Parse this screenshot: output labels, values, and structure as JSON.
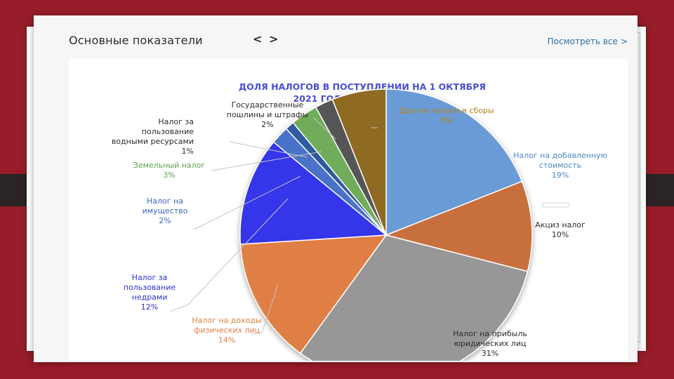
{
  "header": {
    "title": "Основные показатели",
    "arrows": "< >",
    "see_all": "Посмотреть все",
    "see_all_chevron": ">"
  },
  "chart_data": {
    "type": "pie",
    "title": "ДОЛЯ НАЛОГОВ В ПОСТУПЛЕНИИ НА 1 ОКТЯБРЯ 2021 ГОДА (В ПРОЦЕНТАХ)",
    "title_lines": [
      "ДОЛЯ НАЛОГОВ В ПОСТУПЛЕНИИ НА 1 ОКТЯБРЯ",
      "2021 ГОДА (В ПРОЦЕНТАХ)"
    ],
    "slices": [
      {
        "name": "Налог на добавленную стоимость",
        "label_lines": [
          "Налог на добавленную",
          "стоимость"
        ],
        "value": 19,
        "pct": "19%",
        "color": "#6a9bd6",
        "label_color": "#4f86c6"
      },
      {
        "name": "Акциз налог",
        "label_lines": [
          "Акциз налог"
        ],
        "value": 10,
        "pct": "10%",
        "color": "#c8703c",
        "label_color": "#2b2b2b"
      },
      {
        "name": "Налог на прибыль юридических лиц",
        "label_lines": [
          "Налог на прибыль",
          "юридических лиц"
        ],
        "value": 31,
        "pct": "31%",
        "color": "#979797",
        "label_color": "#2b2b2b"
      },
      {
        "name": "Налог на доходы физических лиц",
        "label_lines": [
          "Налог на доходы",
          "физических лиц"
        ],
        "value": 14,
        "pct": "14%",
        "color": "#e07f44",
        "label_color": "#e07f44"
      },
      {
        "name": "Налог за пользование недрами",
        "label_lines": [
          "Налог за",
          "пользование",
          "недрами"
        ],
        "value": 12,
        "pct": "12%",
        "color": "#3434ea",
        "label_color": "#2f2fd6"
      },
      {
        "name": "Налог на имущество",
        "label_lines": [
          "Налог на",
          "имущество"
        ],
        "value": 2,
        "pct": "2%",
        "color": "#4a72c8",
        "label_color": "#3c66c0"
      },
      {
        "name": "Налог за пользование водными ресурсами",
        "label_lines": [
          "Налог за",
          "пользование",
          "водными ресурсами"
        ],
        "value": 1,
        "pct": "1%",
        "color": "#2e5a9e",
        "label_color": "#2b2b2b"
      },
      {
        "name": "Земельный налог",
        "label_lines": [
          "Земельный налог"
        ],
        "value": 3,
        "pct": "3%",
        "color": "#6fac5a",
        "label_color": "#5aa24a"
      },
      {
        "name": "Государственные пошлины и штрафы",
        "label_lines": [
          "Государственные",
          "пошлины и штрафы"
        ],
        "value": 2,
        "pct": "2%",
        "color": "#555555",
        "label_color": "#2b2b2b"
      },
      {
        "name": "Другие налоги и сборы",
        "label_lines": [
          "Другие налоги и сборы"
        ],
        "value": 6,
        "pct": "6%",
        "color": "#8e6a24",
        "label_color": "#b0841c"
      }
    ]
  }
}
